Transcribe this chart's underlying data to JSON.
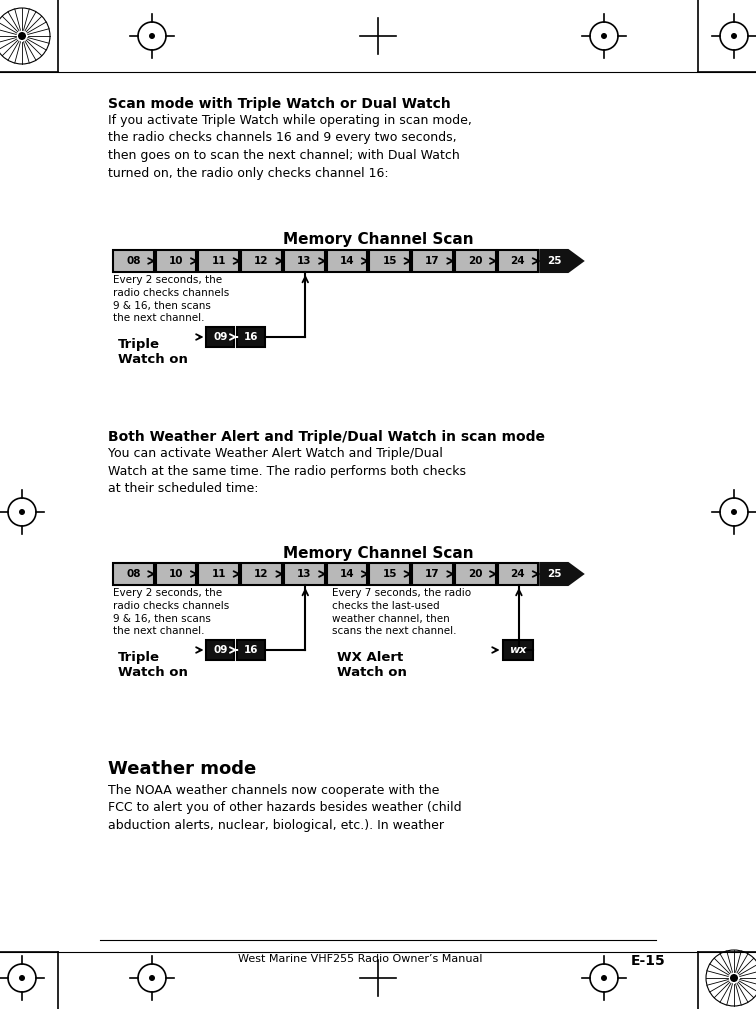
{
  "page_bg": "#ffffff",
  "channels": [
    "08",
    "10",
    "11",
    "12",
    "13",
    "14",
    "15",
    "17",
    "20",
    "24",
    "25"
  ],
  "header_text": "Scan mode with Triple Watch or Dual Watch",
  "body_text1": "If you activate Triple Watch while operating in scan mode,\nthe radio checks channels 16 and 9 every two seconds,\nthen goes on to scan the next channel; with Dual Watch\nturned on, the radio only checks channel 16:",
  "diag1_title": "Memory Channel Scan",
  "ann1_text": "Every 2 seconds, the\nradio checks channels\n9 & 16, then scans\nthe next channel.",
  "triple_watch_label": "Triple\nWatch on",
  "header_text2": "Both Weather Alert and Triple/Dual Watch in scan mode",
  "body_text2": "You can activate Weather Alert Watch and Triple/Dual\nWatch at the same time. The radio performs both checks\nat their scheduled time:",
  "diag2_title": "Memory Channel Scan",
  "ann2_left_text": "Every 2 seconds, the\nradio checks channels\n9 & 16, then scans\nthe next channel.",
  "ann2_right_text": "Every 7 seconds, the radio\nchecks the last-used\nweather channel, then\nscans the next channel.",
  "triple_watch_label2": "Triple\nWatch on",
  "wx_alert_label": "WX Alert\nWatch on",
  "header_text3": "Weather mode",
  "body_text3": "The NOAA weather channels now cooperate with the\nFCC to alert you of other hazards besides weather (child\nabduction alerts, nuclear, biological, etc.). In weather",
  "footer_text": "West Marine VHF255 Radio Owner’s Manual",
  "footer_right": "E-15",
  "channel_bg": "#b8b8b8",
  "channel_dark_bg": "#111111",
  "arrow_dark": "#111111"
}
